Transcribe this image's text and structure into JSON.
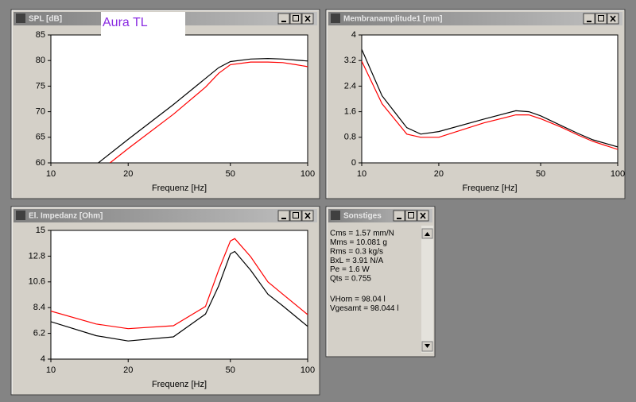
{
  "chart_data": [
    {
      "type": "line",
      "title": "SPL [dB]",
      "annotation": "Aura TL",
      "xlabel": "Frequenz [Hz]",
      "xscale": "log",
      "xlim": [
        10,
        100
      ],
      "xticks": [
        10,
        20,
        50,
        100
      ],
      "ylim": [
        60,
        85
      ],
      "yticks": [
        60,
        65,
        70,
        75,
        80,
        85
      ],
      "grid": false,
      "series": [
        {
          "color": "#000000",
          "x": [
            15.3,
            20,
            30,
            40,
            45,
            50,
            60,
            70,
            80,
            90,
            100
          ],
          "values": [
            60,
            64.6,
            71.4,
            76.5,
            78.6,
            79.8,
            80.3,
            80.4,
            80.3,
            80.1,
            79.9
          ]
        },
        {
          "color": "#ff0000",
          "x": [
            17,
            20,
            30,
            40,
            45,
            50,
            60,
            70,
            80,
            90,
            100
          ],
          "values": [
            60,
            62.8,
            69.5,
            74.8,
            77.5,
            79.2,
            79.7,
            79.7,
            79.6,
            79.2,
            78.8
          ]
        }
      ]
    },
    {
      "type": "line",
      "title": "Membranamplitude1 [mm]",
      "xlabel": "Frequenz [Hz]",
      "xscale": "log",
      "xlim": [
        10,
        100
      ],
      "xticks": [
        10,
        20,
        50,
        100
      ],
      "ylim": [
        0,
        4
      ],
      "yticks": [
        0,
        0.8,
        1.6,
        2.4,
        3.2,
        4
      ],
      "grid": false,
      "series": [
        {
          "color": "#000000",
          "x": [
            10,
            12,
            15,
            17,
            20,
            30,
            40,
            45,
            50,
            60,
            70,
            80,
            100
          ],
          "values": [
            3.55,
            2.1,
            1.1,
            0.9,
            0.98,
            1.37,
            1.63,
            1.6,
            1.47,
            1.17,
            0.92,
            0.72,
            0.5
          ]
        },
        {
          "color": "#ff0000",
          "x": [
            10,
            12,
            15,
            17,
            20,
            30,
            40,
            45,
            50,
            60,
            70,
            80,
            100
          ],
          "values": [
            3.18,
            1.85,
            0.9,
            0.8,
            0.8,
            1.25,
            1.5,
            1.5,
            1.38,
            1.12,
            0.87,
            0.67,
            0.42
          ]
        }
      ]
    },
    {
      "type": "line",
      "title": "El. Impedanz [Ohm]",
      "xlabel": "Frequenz [Hz]",
      "xscale": "log",
      "xlim": [
        10,
        100
      ],
      "xticks": [
        10,
        20,
        50,
        100
      ],
      "ylim": [
        4,
        15
      ],
      "yticks": [
        4,
        6.2,
        8.4,
        10.6,
        12.8,
        15
      ],
      "grid": false,
      "series": [
        {
          "color": "#000000",
          "x": [
            10,
            15,
            20,
            30,
            40,
            45,
            50,
            52,
            60,
            70,
            80,
            100
          ],
          "values": [
            7.2,
            6.0,
            5.55,
            5.9,
            7.85,
            10.25,
            13.0,
            13.2,
            11.6,
            9.55,
            8.55,
            6.8
          ]
        },
        {
          "color": "#ff0000",
          "x": [
            10,
            15,
            20,
            30,
            40,
            45,
            50,
            52,
            60,
            70,
            80,
            100
          ],
          "values": [
            8.1,
            7.0,
            6.6,
            6.85,
            8.5,
            11.6,
            14.1,
            14.3,
            12.75,
            10.6,
            9.55,
            7.8
          ]
        }
      ]
    }
  ],
  "sonstiges": {
    "title": "Sonstiges",
    "params": [
      "Cms = 1.57 mm/N",
      "Mms = 10.081 g",
      "Rms = 0.3 kg/s",
      "BxL = 3.91 N/A",
      "Pe = 1.6 W",
      "Qts = 0.755"
    ],
    "volumes": [
      "VHorn = 98.04 l",
      "Vgesamt = 98.044 l"
    ]
  }
}
